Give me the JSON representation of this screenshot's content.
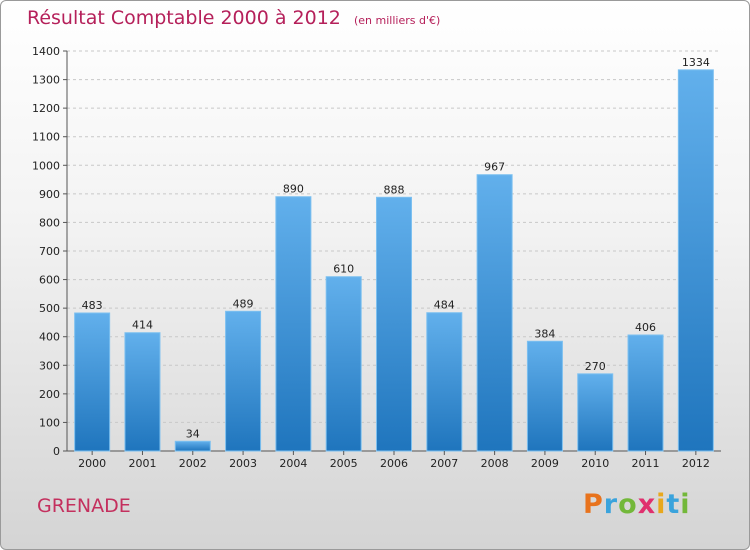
{
  "chart_data": {
    "type": "bar",
    "title": "Résultat Comptable 2000 à 2012",
    "subtitle": "(en milliers d'€)",
    "categories": [
      "2000",
      "2001",
      "2002",
      "2003",
      "2004",
      "2005",
      "2006",
      "2007",
      "2008",
      "2009",
      "2010",
      "2011",
      "2012"
    ],
    "values": [
      483,
      414,
      34,
      489,
      890,
      610,
      888,
      484,
      967,
      384,
      270,
      406,
      1334
    ],
    "ylim": [
      0,
      1400
    ],
    "yticks": [
      0,
      100,
      200,
      300,
      400,
      500,
      600,
      700,
      800,
      900,
      1000,
      1100,
      1200,
      1300,
      1400
    ],
    "grid": true,
    "bar_color": "#3a8fd6"
  },
  "footer": {
    "location": "GRENADE",
    "logo": {
      "letters": [
        "P",
        "r",
        "o",
        "x",
        "i",
        "t",
        "i"
      ],
      "colors": [
        "#e8731d",
        "#3aa3dc",
        "#73b83a",
        "#e0306e",
        "#e8a81d",
        "#3aa3dc",
        "#73b83a"
      ]
    }
  }
}
